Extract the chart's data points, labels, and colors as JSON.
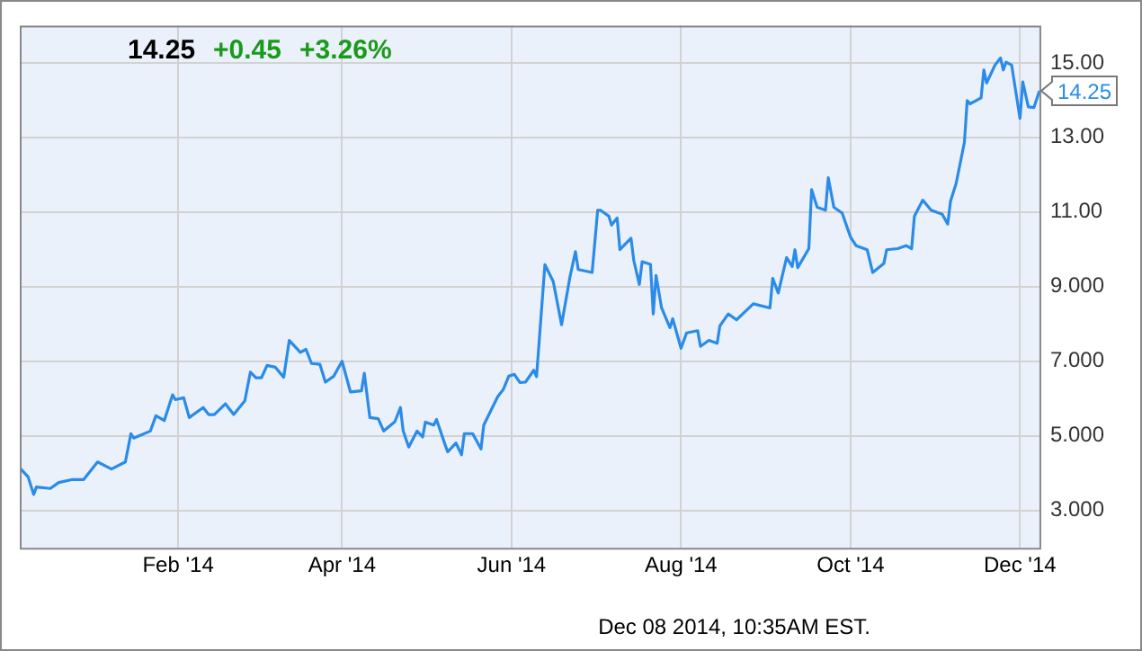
{
  "chart_data": {
    "type": "line",
    "title": "14.25 +0.45 +3.26%",
    "x": [
      "2013-12-06",
      "2013-12-09",
      "2013-12-11",
      "2013-12-12",
      "2013-12-17",
      "2013-12-20",
      "2013-12-25",
      "2013-12-29",
      "2014-01-03",
      "2014-01-08",
      "2014-01-13",
      "2014-01-15",
      "2014-01-16",
      "2014-01-22",
      "2014-01-24",
      "2014-01-27",
      "2014-01-30",
      "2014-01-31",
      "2014-02-03",
      "2014-02-05",
      "2014-02-10",
      "2014-02-12",
      "2014-02-14",
      "2014-02-18",
      "2014-02-21",
      "2014-02-25",
      "2014-02-27",
      "2014-03-01",
      "2014-03-03",
      "2014-03-05",
      "2014-03-08",
      "2014-03-11",
      "2014-03-13",
      "2014-03-17",
      "2014-03-19",
      "2014-03-21",
      "2014-03-24",
      "2014-03-26",
      "2014-03-29",
      "2014-04-01",
      "2014-04-04",
      "2014-04-08",
      "2014-04-09",
      "2014-04-11",
      "2014-04-14",
      "2014-04-16",
      "2014-04-20",
      "2014-04-22",
      "2014-04-23",
      "2014-04-25",
      "2014-04-28",
      "2014-04-30",
      "2014-05-01",
      "2014-05-04",
      "2014-05-05",
      "2014-05-08",
      "2014-05-09",
      "2014-05-12",
      "2014-05-14",
      "2014-05-15",
      "2014-05-18",
      "2014-05-21",
      "2014-05-22",
      "2014-05-27",
      "2014-05-29",
      "2014-05-31",
      "2014-06-02",
      "2014-06-04",
      "2014-06-06",
      "2014-06-09",
      "2014-06-10",
      "2014-06-13",
      "2014-06-16",
      "2014-06-19",
      "2014-06-22",
      "2014-06-24",
      "2014-06-25",
      "2014-06-30",
      "2014-07-02",
      "2014-07-03",
      "2014-07-06",
      "2014-07-07",
      "2014-07-09",
      "2014-07-10",
      "2014-07-14",
      "2014-07-15",
      "2014-07-17",
      "2014-07-18",
      "2014-07-21",
      "2014-07-22",
      "2014-07-23",
      "2014-07-25",
      "2014-07-28",
      "2014-07-29",
      "2014-08-01",
      "2014-08-03",
      "2014-08-07",
      "2014-08-08",
      "2014-08-11",
      "2014-08-14",
      "2014-08-15",
      "2014-08-18",
      "2014-08-21",
      "2014-08-27",
      "2014-09-02",
      "2014-09-03",
      "2014-09-05",
      "2014-09-08",
      "2014-09-10",
      "2014-09-11",
      "2014-09-12",
      "2014-09-16",
      "2014-09-17",
      "2014-09-19",
      "2014-09-22",
      "2014-09-23",
      "2014-09-25",
      "2014-09-28",
      "2014-10-01",
      "2014-10-03",
      "2014-10-07",
      "2014-10-09",
      "2014-10-13",
      "2014-10-14",
      "2014-10-18",
      "2014-10-21",
      "2014-10-23",
      "2014-10-24",
      "2014-10-27",
      "2014-10-30",
      "2014-11-03",
      "2014-11-05",
      "2014-11-06",
      "2014-11-08",
      "2014-11-11",
      "2014-11-12",
      "2014-11-13",
      "2014-11-17",
      "2014-11-18",
      "2014-11-19",
      "2014-11-22",
      "2014-11-24",
      "2014-11-25",
      "2014-11-26",
      "2014-11-28",
      "2014-12-01",
      "2014-12-02",
      "2014-12-04",
      "2014-12-06",
      "2014-12-08"
    ],
    "series": [
      {
        "color": "#2a8be8",
        "values": [
          4.14,
          3.9,
          3.43,
          3.63,
          3.59,
          3.75,
          3.83,
          3.83,
          4.3,
          4.11,
          4.3,
          5.06,
          4.94,
          5.13,
          5.54,
          5.41,
          6.1,
          5.97,
          6.02,
          5.49,
          5.76,
          5.57,
          5.57,
          5.86,
          5.57,
          5.94,
          6.71,
          6.56,
          6.56,
          6.89,
          6.84,
          6.57,
          7.56,
          7.24,
          7.32,
          6.94,
          6.92,
          6.44,
          6.6,
          7.0,
          6.18,
          6.21,
          6.68,
          5.49,
          5.46,
          5.13,
          5.38,
          5.76,
          5.13,
          4.7,
          5.13,
          4.97,
          5.37,
          5.29,
          5.44,
          4.78,
          4.57,
          4.81,
          4.49,
          5.06,
          5.06,
          4.65,
          5.29,
          6.05,
          6.24,
          6.6,
          6.65,
          6.43,
          6.44,
          6.76,
          6.59,
          9.59,
          9.14,
          7.98,
          9.25,
          9.94,
          9.46,
          9.38,
          11.05,
          11.05,
          10.89,
          10.65,
          10.84,
          9.99,
          10.3,
          9.7,
          9.06,
          9.67,
          9.6,
          8.27,
          9.3,
          8.43,
          7.9,
          8.14,
          7.35,
          7.76,
          7.82,
          7.4,
          7.56,
          7.48,
          7.95,
          8.27,
          8.11,
          8.54,
          8.43,
          9.22,
          8.83,
          9.78,
          9.54,
          9.99,
          9.51,
          10.02,
          11.6,
          11.13,
          11.05,
          11.92,
          11.13,
          10.97,
          10.33,
          10.1,
          9.99,
          9.38,
          9.62,
          9.99,
          10.02,
          10.1,
          10.02,
          10.89,
          11.32,
          11.05,
          10.94,
          10.68,
          11.29,
          11.76,
          12.87,
          13.99,
          13.9,
          14.06,
          14.81,
          14.46,
          14.94,
          15.13,
          14.81,
          15.02,
          14.94,
          13.51,
          14.49,
          13.82,
          13.8,
          14.25
        ]
      }
    ],
    "xlim": [
      "2013-12-06",
      "2014-12-08"
    ],
    "xticks": [
      {
        "value": "2014-02-01",
        "label": "Feb '14"
      },
      {
        "value": "2014-04-01",
        "label": "Apr '14"
      },
      {
        "value": "2014-06-01",
        "label": "Jun '14"
      },
      {
        "value": "2014-08-01",
        "label": "Aug '14"
      },
      {
        "value": "2014-10-01",
        "label": "Oct '14"
      },
      {
        "value": "2014-12-01",
        "label": "Dec '14"
      }
    ],
    "ylim": [
      2,
      16
    ],
    "yticks": [
      {
        "value": 3,
        "label": "3.000"
      },
      {
        "value": 5,
        "label": "5.000"
      },
      {
        "value": 7,
        "label": "7.000"
      },
      {
        "value": 9,
        "label": "9.000"
      },
      {
        "value": 11,
        "label": "11.00"
      },
      {
        "value": 13,
        "label": "13.00"
      },
      {
        "value": 15,
        "label": "15.00"
      }
    ],
    "grid": true,
    "legend": false,
    "marker": "none",
    "line_style": "solid",
    "annotations": [
      {
        "text": "14.25",
        "x": "2014-12-08",
        "y": 14.25
      },
      "Dec 08 2014, 10:35AM EST."
    ]
  }
}
